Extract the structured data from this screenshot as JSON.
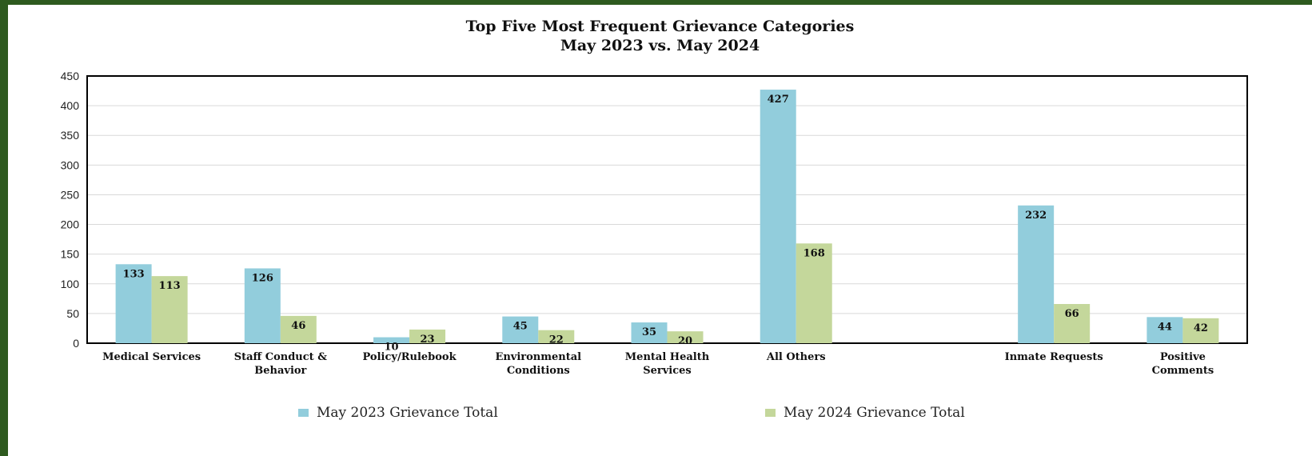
{
  "chart_data": {
    "type": "bar",
    "title": "Top Five Most Frequent Grievance Categories",
    "subtitle": "May 2023 vs.  May 2024",
    "categories": [
      [
        "Medical Services"
      ],
      [
        "Staff Conduct &",
        "Behavior"
      ],
      [
        "Policy/Rulebook"
      ],
      [
        "Environmental",
        "Conditions"
      ],
      [
        "Mental Health",
        "Services"
      ],
      [
        "All Others"
      ],
      [
        ""
      ],
      [
        "Inmate Requests"
      ],
      [
        "Positive",
        "Comments"
      ]
    ],
    "series": [
      {
        "name": "May 2023 Grievance Total",
        "color": "#92cddc",
        "values": [
          133,
          126,
          10,
          45,
          35,
          427,
          null,
          232,
          44
        ]
      },
      {
        "name": "May 2024 Grievance Total",
        "color": "#c4d79b",
        "values": [
          113,
          46,
          23,
          22,
          20,
          168,
          null,
          66,
          42
        ]
      }
    ],
    "ylim": [
      0,
      450
    ],
    "yticks": [
      0,
      50,
      100,
      150,
      200,
      250,
      300,
      350,
      400,
      450
    ],
    "grid": true,
    "legend": "bottom",
    "data_labels": true
  }
}
